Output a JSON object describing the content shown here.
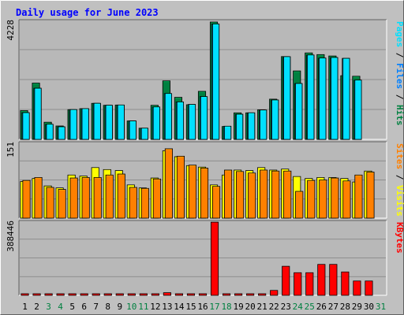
{
  "chart_data": {
    "type": "bar",
    "title": "Daily usage for June 2023",
    "x": [
      "1",
      "2",
      "3",
      "4",
      "5",
      "6",
      "7",
      "8",
      "9",
      "10",
      "11",
      "12",
      "13",
      "14",
      "15",
      "16",
      "17",
      "18",
      "19",
      "20",
      "21",
      "22",
      "23",
      "24",
      "25",
      "26",
      "27",
      "28",
      "29",
      "30",
      "31"
    ],
    "weekend_days": [
      3,
      4,
      10,
      11,
      17,
      18,
      24,
      25,
      31
    ],
    "colors": {
      "background": "#c0c0c0",
      "plot_bg": "#b8b8b8",
      "hits": "#008040",
      "files": "#00c0ff",
      "pages": "#00e0ff",
      "visits": "#ffff00",
      "sites": "#ff8000",
      "kbytes": "#ff0000",
      "title": "#0000ff",
      "weekday_label": "#000000",
      "weekend_label": "#008040"
    },
    "panels": [
      {
        "ymax_label": "4228",
        "ylim": [
          0,
          4228
        ],
        "legend": [
          {
            "label": "Pages",
            "color": "#00e0ff"
          },
          {
            "sep": " / "
          },
          {
            "label": "Files",
            "color": "#0080ff"
          },
          {
            "sep": " / "
          },
          {
            "label": "Hits",
            "color": "#008040"
          }
        ],
        "series": [
          {
            "key": "hits",
            "values": [
              1030,
              2015,
              615,
              480,
              1065,
              1100,
              1290,
              1220,
              1230,
              660,
              400,
              1220,
              2095,
              1505,
              1240,
              1720,
              4200,
              460,
              950,
              950,
              1060,
              1440,
              2965,
              2450,
              3095,
              3035,
              2985,
              2280,
              2260,
              0,
              0
            ]
          },
          {
            "key": "files",
            "values": [
              955,
              1830,
              540,
              450,
              1065,
              1100,
              1290,
              1220,
              1230,
              660,
              400,
              1160,
              1640,
              1340,
              1250,
              1530,
              4130,
              470,
              900,
              950,
              1050,
              1410,
              2960,
              2000,
              3020,
              2910,
              2930,
              2900,
              2120,
              0,
              0
            ]
          },
          {
            "key": "pages",
            "values": [
              955,
              1830,
              540,
              450,
              1065,
              1100,
              1290,
              1220,
              1230,
              660,
              400,
              1160,
              1640,
              1340,
              1250,
              1530,
              4130,
              470,
              900,
              950,
              1050,
              1410,
              2960,
              2000,
              3020,
              2910,
              2930,
              2900,
              2120,
              0,
              0
            ]
          }
        ]
      },
      {
        "ymax_label": "151",
        "ylim": [
          0,
          151
        ],
        "legend": [
          {
            "label": "Sites",
            "color": "#ff8000"
          },
          {
            "sep": " / "
          },
          {
            "label": "Visits",
            "color": "#ffff00"
          }
        ],
        "series": [
          {
            "key": "visits",
            "values": [
              74,
              80,
              65,
              61,
              87,
              85,
              102,
              98,
              96,
              67,
              61,
              81,
              136,
              124,
              106,
              103,
              67,
              87,
              97,
              96,
              102,
              97,
              99,
              84,
              80,
              82,
              82,
              80,
              73,
              95,
              0
            ]
          },
          {
            "key": "sites",
            "values": [
              76,
              82,
              62,
              58,
              81,
              82,
              82,
              87,
              89,
              62,
              60,
              79,
              140,
              125,
              107,
              101,
              64,
              97,
              94,
              91,
              97,
              95,
              95,
              54,
              76,
              77,
              81,
              75,
              87,
              93,
              0
            ]
          }
        ]
      },
      {
        "ymax_label": "388446",
        "ylim": [
          0,
          388446
        ],
        "legend": [
          {
            "label": "KBytes",
            "color": "#ff0000"
          }
        ],
        "series": [
          {
            "key": "kbytes",
            "values": [
              2000,
              2000,
              2000,
              2000,
              2000,
              2000,
              2000,
              2000,
              2000,
              2000,
              2000,
              2000,
              14000,
              3000,
              3000,
              8000,
              388000,
              2000,
              3000,
              3000,
              3000,
              26000,
              154000,
              120000,
              120000,
              164000,
              164000,
              124000,
              76000,
              76000,
              0
            ]
          }
        ]
      }
    ]
  }
}
